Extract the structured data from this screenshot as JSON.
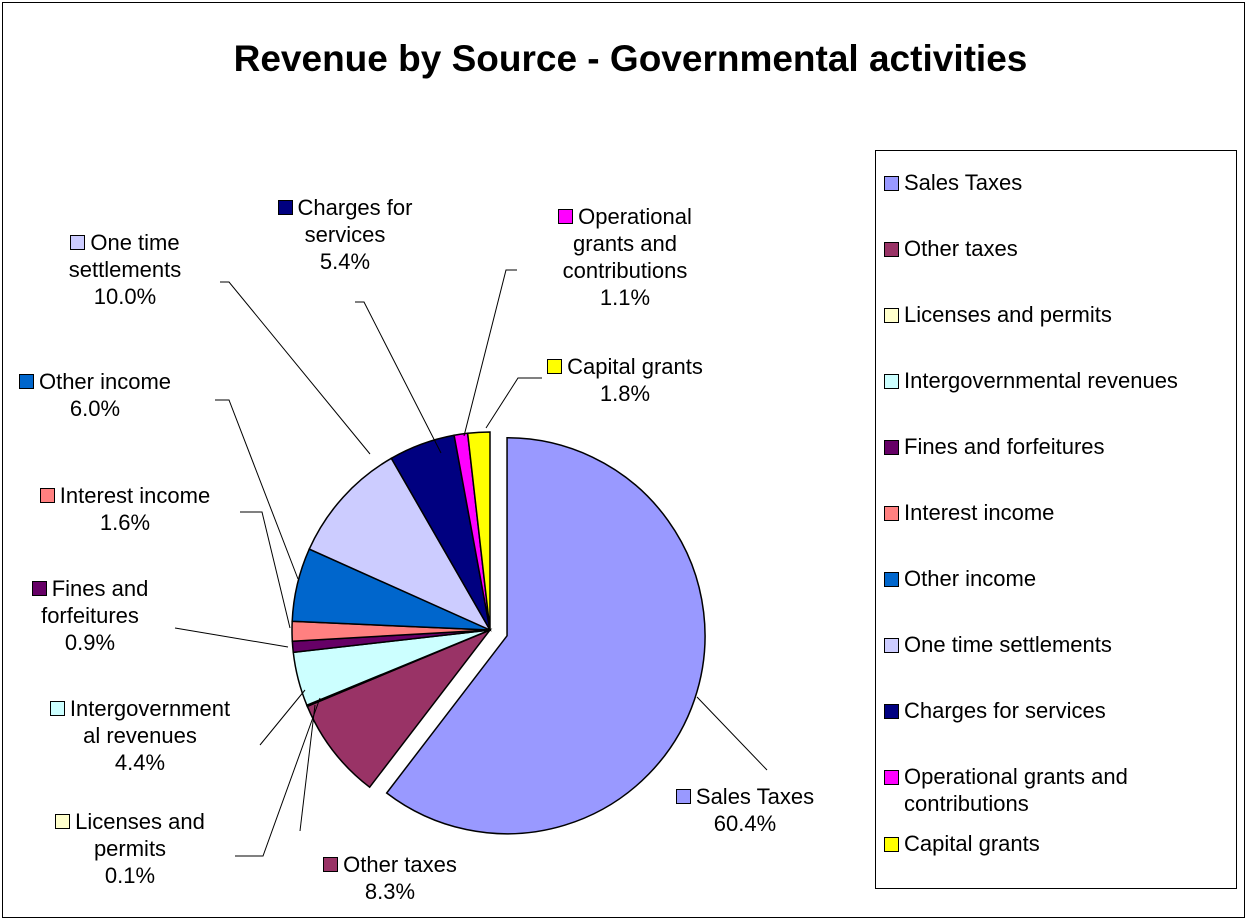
{
  "chart_data": {
    "type": "pie",
    "title": "Revenue by Source - Governmental activities",
    "categories": [
      "Sales Taxes",
      "Other taxes",
      "Licenses and permits",
      "Intergovernmental revenues",
      "Fines and forfeitures",
      "Interest income",
      "Other income",
      "One time settlements",
      "Charges for services",
      "Operational grants and contributions",
      "Capital grants"
    ],
    "values": [
      60.4,
      8.3,
      0.1,
      4.4,
      0.9,
      1.6,
      6.0,
      10.0,
      5.4,
      1.1,
      1.8
    ],
    "value_labels": [
      "60.4%",
      "8.3%",
      "0.1%",
      "4.4%",
      "0.9%",
      "1.6%",
      "6.0%",
      "10.0%",
      "5.4%",
      "1.1%",
      "1.8%"
    ],
    "slice_label_lines": [
      [
        "Sales Taxes"
      ],
      [
        "Other taxes"
      ],
      [
        "Licenses and",
        "permits"
      ],
      [
        "Intergovernment",
        "al revenues"
      ],
      [
        "Fines and",
        "forfeitures"
      ],
      [
        "Interest income"
      ],
      [
        "Other income"
      ],
      [
        "One time",
        "settlements"
      ],
      [
        "Charges for",
        "services"
      ],
      [
        "Operational",
        "grants and",
        "contributions"
      ],
      [
        "Capital grants"
      ]
    ],
    "colors": [
      "#9999FF",
      "#993366",
      "#FFFFCC",
      "#CCFFFF",
      "#660066",
      "#FF8080",
      "#0066CC",
      "#CCCCFF",
      "#000080",
      "#FF00FF",
      "#FFFF00"
    ],
    "legend_position": "right",
    "exploded": "Sales Taxes"
  }
}
